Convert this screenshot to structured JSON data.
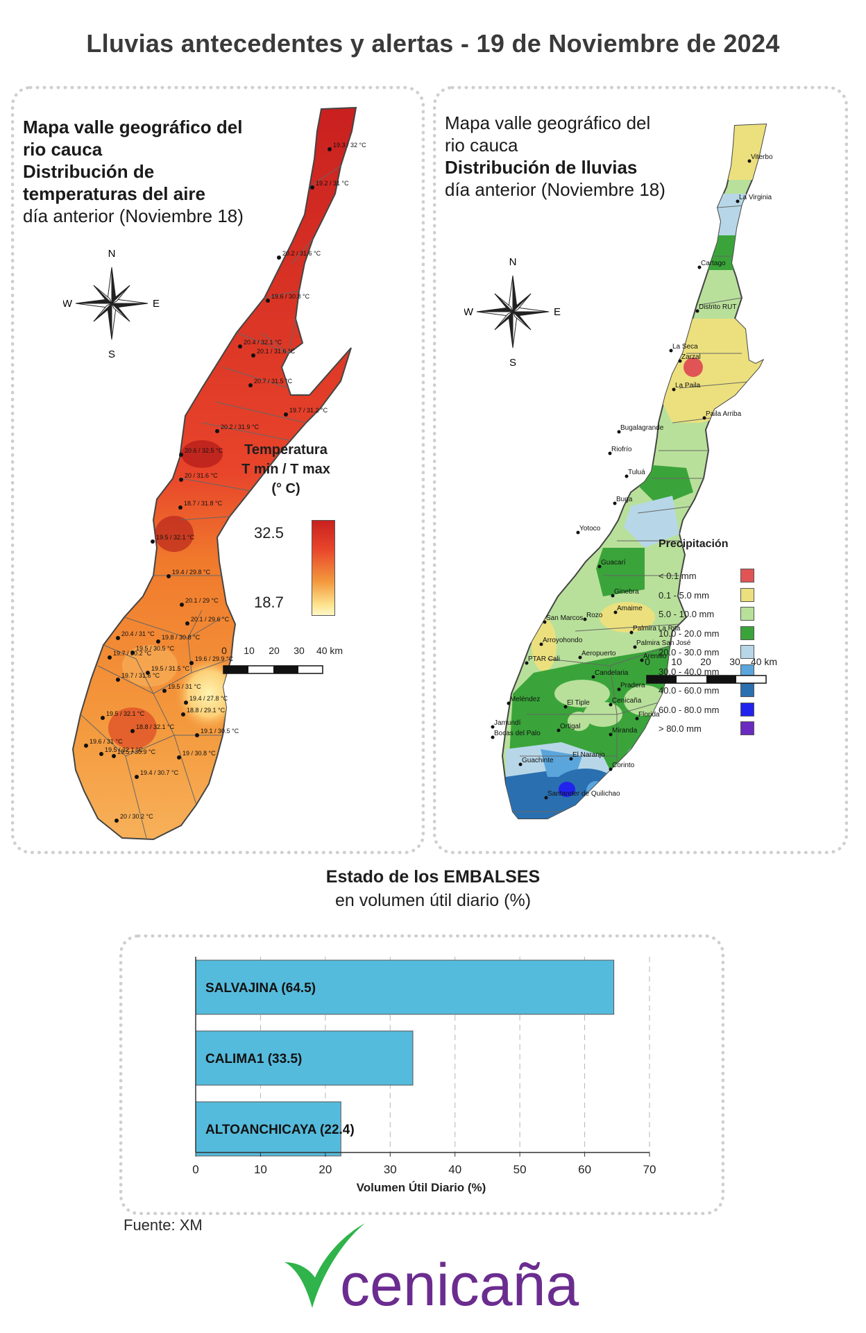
{
  "page_title": "Lluvias antecedentes y alertas - 19 de Noviembre de 2024",
  "temp_map": {
    "title_line1": "Mapa valle geográfico del",
    "title_line2": "rio cauca",
    "title_line3": "Distribución de",
    "title_line4": "temperaturas del aire",
    "subtitle": "día anterior (Noviembre 18)",
    "legend_title_1": "Temperatura",
    "legend_title_2": "T min / T max",
    "legend_title_3": "(° C)",
    "legend_max": "32.5",
    "legend_min": "18.7",
    "colors": {
      "hot": "#c9201f",
      "mid": "#f07a2c",
      "cool": "#fde08a",
      "pale": "#fff8c8"
    },
    "stations": [
      "19.3 / 32 °C",
      "19.2 / 31 °C",
      "20.2 / 31.6 °C",
      "19.6 / 30.8 °C",
      "20.4 / 32.1 °C",
      "20.1 / 31.6 °C",
      "20.7 / 31.5 °C",
      "19.7 / 31.2 °C",
      "20.2 / 31.9 °C",
      "20.6 / 32.5 °C",
      "20 / 31.6 °C",
      "18.7 / 31.8 °C",
      "19.5 / 32.1 °C",
      "19.4 / 29.8 °C",
      "20.1 / 29 °C",
      "20.1 / 29.6 °C",
      "20.4 / 31 °C",
      "19.8 / 30.8 °C",
      "19.7 / 30.2 °C",
      "19.5 / 30.5 °C",
      "19.6 / 29.9 °C",
      "19.7 / 31.6 °C",
      "19.5 / 31.5 °C",
      "19.5 / 31 °C",
      "19.4 / 27.8 °C",
      "18.8 / 29.1 °C",
      "19.5 / 32.1 °C",
      "18.8 / 32.1 °C",
      "19.1 / 30.5 °C",
      "19.6 / 31 °C",
      "19.5 / 30.9 °C",
      "19.5 / 32.1 °C",
      "19 / 30.8 °C",
      "19.4 / 30.7 °C",
      "20 / 30.2 °C"
    ]
  },
  "rain_map": {
    "title_line1": "Mapa valle geográfico del",
    "title_line2": "rio cauca",
    "title_line3": "Distribución de lluvias",
    "subtitle": "día anterior (Noviembre 18)",
    "legend_title": "Precipitación",
    "legend": [
      {
        "label": "< 0.1 mm",
        "color": "#e05455"
      },
      {
        "label": "0.1 - 5.0 mm",
        "color": "#ece07e"
      },
      {
        "label": "5.0 - 10.0 mm",
        "color": "#b8e09a"
      },
      {
        "label": "10.0 - 20.0 mm",
        "color": "#3aa43a"
      },
      {
        "label": "20.0 - 30.0 mm",
        "color": "#b7d7e8"
      },
      {
        "label": "30.0 - 40.0 mm",
        "color": "#5aa6dc"
      },
      {
        "label": "40.0 - 60.0 mm",
        "color": "#2a6fb0"
      },
      {
        "label": "60.0 - 80.0 mm",
        "color": "#2222ee"
      },
      {
        "label": "> 80.0 mm",
        "color": "#6a2ac0"
      }
    ],
    "places": [
      "Viterbo",
      "La Virginia",
      "Cartago",
      "Distrito RUT",
      "La Seca",
      "Zarzal",
      "La Paila",
      "Paila Arriba",
      "Bugalagrande",
      "Riofrío",
      "Tuluá",
      "Buga",
      "Yotoco",
      "Guacarí",
      "Ginebra",
      "Amaime",
      "San Marcos",
      "Rozo",
      "Palmira La Rita",
      "Arroyohondo",
      "Palmira San José",
      "Aeropuerto",
      "Arenillo",
      "PTAR Cali",
      "Candelaria",
      "Pradera",
      "Meléndez",
      "El Tiple",
      "Cenicaña",
      "Florida",
      "Jamundí",
      "Bocas del Palo",
      "Ortigal",
      "Miranda",
      "El Naranjo",
      "Guachinte",
      "Corinto",
      "Santander de Quilichao"
    ]
  },
  "compass": {
    "n": "N",
    "s": "S",
    "e": "E",
    "w": "W"
  },
  "scale": {
    "ticks": [
      "0",
      "10",
      "20",
      "30",
      "40 km"
    ]
  },
  "reservoirs": {
    "title": "Estado de los EMBALSES",
    "subtitle": "en volumen útil diario (%)",
    "bar_color": "#55bbdc"
  },
  "chart_data": {
    "type": "bar",
    "orientation": "horizontal",
    "categories": [
      "SALVAJINA",
      "CALIMA1",
      "ALTOANCHICAYA"
    ],
    "bar_labels": [
      "SALVAJINA (64.5)",
      "CALIMA1 (33.5)",
      "ALTOANCHICAYA (22.4)"
    ],
    "values": [
      64.5,
      33.5,
      22.4
    ],
    "xlabel": "Volumen Útil Diario (%)",
    "ylabel": "",
    "xlim": [
      0,
      70
    ],
    "xticks": [
      "0",
      "10",
      "20",
      "30",
      "40",
      "50",
      "60",
      "70"
    ],
    "grid": true
  },
  "source": "Fuente: XM",
  "logo_text": "cenicaña",
  "brand_colors": {
    "logo_green": "#2fb34a",
    "logo_purple": "#6b2c8f"
  }
}
